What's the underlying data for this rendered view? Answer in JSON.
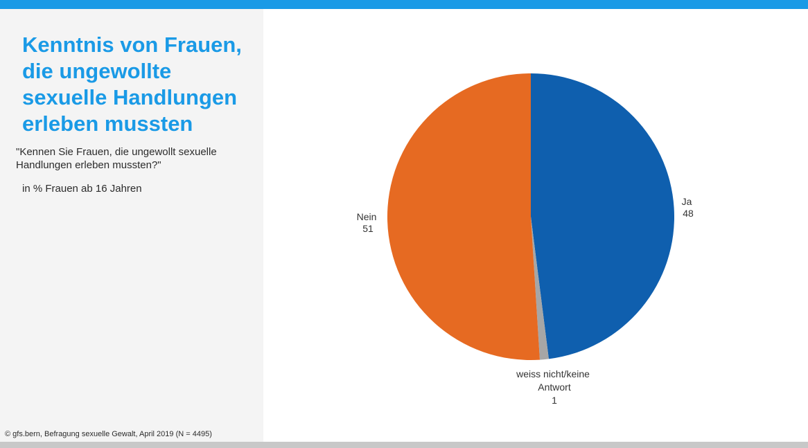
{
  "page": {
    "title": "Kenntnis von Frauen,\ndie ungewollte\nsexuelle Handlungen\nerleben mussten",
    "question": "\"Kennen Sie Frauen, die ungewollt sexuelle\nHandlungen erleben mussten?\"",
    "unit": "in % Frauen ab 16 Jahren",
    "source": "© gfs.bern, Befragung sexuelle Gewalt, April 2019 (N = 4495)"
  },
  "colors": {
    "accent": "#1a9ae6",
    "ja": "#0f5fae",
    "nein": "#e66a22",
    "weiss_nicht": "#a6a6a6",
    "panel": "#f4f4f4",
    "bottom_bar": "#c8c8c8"
  },
  "chart_data": {
    "type": "pie",
    "title": "Kenntnis von Frauen, die ungewollte sexuelle Handlungen erleben mussten",
    "start_angle_deg": 0,
    "direction": "clockwise",
    "slices": [
      {
        "label": "Ja",
        "value": 48,
        "color": "#0f5fae"
      },
      {
        "label": "weiss nicht/keine Antwort",
        "value": 1,
        "color": "#a6a6a6"
      },
      {
        "label": "Nein",
        "value": 51,
        "color": "#e66a22"
      }
    ]
  }
}
